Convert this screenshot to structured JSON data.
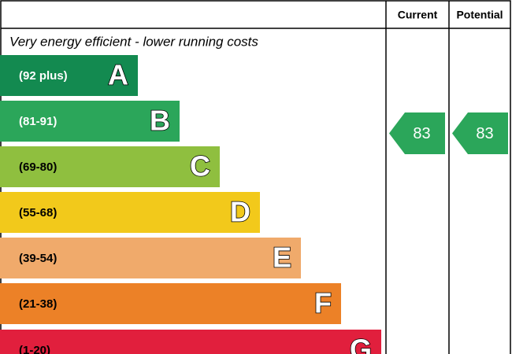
{
  "header": {
    "current": "Current",
    "potential": "Potential"
  },
  "caption": "Very energy efficient - lower running costs",
  "bands": [
    {
      "range": "(92 plus)",
      "letter": "A"
    },
    {
      "range": "(81-91)",
      "letter": "B"
    },
    {
      "range": "(69-80)",
      "letter": "C"
    },
    {
      "range": "(55-68)",
      "letter": "D"
    },
    {
      "range": "(39-54)",
      "letter": "E"
    },
    {
      "range": "(21-38)",
      "letter": "F"
    },
    {
      "range": "(1-20)",
      "letter": "G"
    }
  ],
  "current": {
    "value": 83
  },
  "potential": {
    "value": 83
  }
}
